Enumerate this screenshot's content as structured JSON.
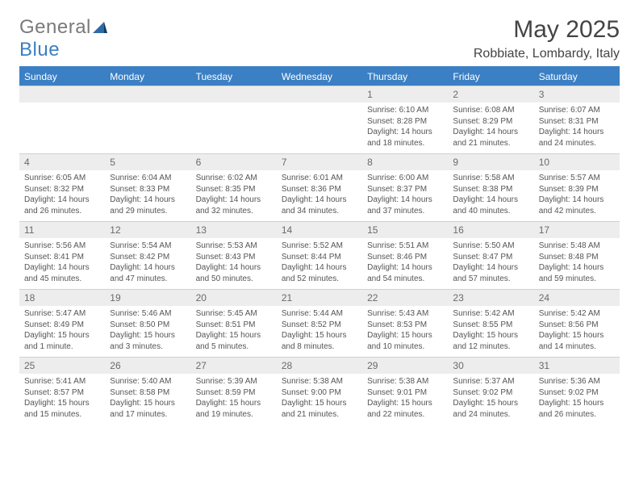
{
  "logo": {
    "general": "General",
    "blue": "Blue"
  },
  "title": "May 2025",
  "location": "Robbiate, Lombardy, Italy",
  "colors": {
    "accent": "#3b7fc4",
    "headerText": "#ffffff",
    "dayNumBg": "#ededed",
    "dayNumColor": "#6a6a6a",
    "bodyText": "#555555",
    "pageBg": "#ffffff"
  },
  "layout": {
    "columns": 7,
    "rows": 5,
    "font_family": "Arial",
    "daynum_fontsize": 12,
    "body_fontsize": 10,
    "title_fontsize": 30
  },
  "weekdays": [
    "Sunday",
    "Monday",
    "Tuesday",
    "Wednesday",
    "Thursday",
    "Friday",
    "Saturday"
  ],
  "weeks": [
    [
      {
        "num": "",
        "sunrise": "",
        "sunset": "",
        "daylight": ""
      },
      {
        "num": "",
        "sunrise": "",
        "sunset": "",
        "daylight": ""
      },
      {
        "num": "",
        "sunrise": "",
        "sunset": "",
        "daylight": ""
      },
      {
        "num": "",
        "sunrise": "",
        "sunset": "",
        "daylight": ""
      },
      {
        "num": "1",
        "sunrise": "Sunrise: 6:10 AM",
        "sunset": "Sunset: 8:28 PM",
        "daylight": "Daylight: 14 hours and 18 minutes."
      },
      {
        "num": "2",
        "sunrise": "Sunrise: 6:08 AM",
        "sunset": "Sunset: 8:29 PM",
        "daylight": "Daylight: 14 hours and 21 minutes."
      },
      {
        "num": "3",
        "sunrise": "Sunrise: 6:07 AM",
        "sunset": "Sunset: 8:31 PM",
        "daylight": "Daylight: 14 hours and 24 minutes."
      }
    ],
    [
      {
        "num": "4",
        "sunrise": "Sunrise: 6:05 AM",
        "sunset": "Sunset: 8:32 PM",
        "daylight": "Daylight: 14 hours and 26 minutes."
      },
      {
        "num": "5",
        "sunrise": "Sunrise: 6:04 AM",
        "sunset": "Sunset: 8:33 PM",
        "daylight": "Daylight: 14 hours and 29 minutes."
      },
      {
        "num": "6",
        "sunrise": "Sunrise: 6:02 AM",
        "sunset": "Sunset: 8:35 PM",
        "daylight": "Daylight: 14 hours and 32 minutes."
      },
      {
        "num": "7",
        "sunrise": "Sunrise: 6:01 AM",
        "sunset": "Sunset: 8:36 PM",
        "daylight": "Daylight: 14 hours and 34 minutes."
      },
      {
        "num": "8",
        "sunrise": "Sunrise: 6:00 AM",
        "sunset": "Sunset: 8:37 PM",
        "daylight": "Daylight: 14 hours and 37 minutes."
      },
      {
        "num": "9",
        "sunrise": "Sunrise: 5:58 AM",
        "sunset": "Sunset: 8:38 PM",
        "daylight": "Daylight: 14 hours and 40 minutes."
      },
      {
        "num": "10",
        "sunrise": "Sunrise: 5:57 AM",
        "sunset": "Sunset: 8:39 PM",
        "daylight": "Daylight: 14 hours and 42 minutes."
      }
    ],
    [
      {
        "num": "11",
        "sunrise": "Sunrise: 5:56 AM",
        "sunset": "Sunset: 8:41 PM",
        "daylight": "Daylight: 14 hours and 45 minutes."
      },
      {
        "num": "12",
        "sunrise": "Sunrise: 5:54 AM",
        "sunset": "Sunset: 8:42 PM",
        "daylight": "Daylight: 14 hours and 47 minutes."
      },
      {
        "num": "13",
        "sunrise": "Sunrise: 5:53 AM",
        "sunset": "Sunset: 8:43 PM",
        "daylight": "Daylight: 14 hours and 50 minutes."
      },
      {
        "num": "14",
        "sunrise": "Sunrise: 5:52 AM",
        "sunset": "Sunset: 8:44 PM",
        "daylight": "Daylight: 14 hours and 52 minutes."
      },
      {
        "num": "15",
        "sunrise": "Sunrise: 5:51 AM",
        "sunset": "Sunset: 8:46 PM",
        "daylight": "Daylight: 14 hours and 54 minutes."
      },
      {
        "num": "16",
        "sunrise": "Sunrise: 5:50 AM",
        "sunset": "Sunset: 8:47 PM",
        "daylight": "Daylight: 14 hours and 57 minutes."
      },
      {
        "num": "17",
        "sunrise": "Sunrise: 5:48 AM",
        "sunset": "Sunset: 8:48 PM",
        "daylight": "Daylight: 14 hours and 59 minutes."
      }
    ],
    [
      {
        "num": "18",
        "sunrise": "Sunrise: 5:47 AM",
        "sunset": "Sunset: 8:49 PM",
        "daylight": "Daylight: 15 hours and 1 minute."
      },
      {
        "num": "19",
        "sunrise": "Sunrise: 5:46 AM",
        "sunset": "Sunset: 8:50 PM",
        "daylight": "Daylight: 15 hours and 3 minutes."
      },
      {
        "num": "20",
        "sunrise": "Sunrise: 5:45 AM",
        "sunset": "Sunset: 8:51 PM",
        "daylight": "Daylight: 15 hours and 5 minutes."
      },
      {
        "num": "21",
        "sunrise": "Sunrise: 5:44 AM",
        "sunset": "Sunset: 8:52 PM",
        "daylight": "Daylight: 15 hours and 8 minutes."
      },
      {
        "num": "22",
        "sunrise": "Sunrise: 5:43 AM",
        "sunset": "Sunset: 8:53 PM",
        "daylight": "Daylight: 15 hours and 10 minutes."
      },
      {
        "num": "23",
        "sunrise": "Sunrise: 5:42 AM",
        "sunset": "Sunset: 8:55 PM",
        "daylight": "Daylight: 15 hours and 12 minutes."
      },
      {
        "num": "24",
        "sunrise": "Sunrise: 5:42 AM",
        "sunset": "Sunset: 8:56 PM",
        "daylight": "Daylight: 15 hours and 14 minutes."
      }
    ],
    [
      {
        "num": "25",
        "sunrise": "Sunrise: 5:41 AM",
        "sunset": "Sunset: 8:57 PM",
        "daylight": "Daylight: 15 hours and 15 minutes."
      },
      {
        "num": "26",
        "sunrise": "Sunrise: 5:40 AM",
        "sunset": "Sunset: 8:58 PM",
        "daylight": "Daylight: 15 hours and 17 minutes."
      },
      {
        "num": "27",
        "sunrise": "Sunrise: 5:39 AM",
        "sunset": "Sunset: 8:59 PM",
        "daylight": "Daylight: 15 hours and 19 minutes."
      },
      {
        "num": "28",
        "sunrise": "Sunrise: 5:38 AM",
        "sunset": "Sunset: 9:00 PM",
        "daylight": "Daylight: 15 hours and 21 minutes."
      },
      {
        "num": "29",
        "sunrise": "Sunrise: 5:38 AM",
        "sunset": "Sunset: 9:01 PM",
        "daylight": "Daylight: 15 hours and 22 minutes."
      },
      {
        "num": "30",
        "sunrise": "Sunrise: 5:37 AM",
        "sunset": "Sunset: 9:02 PM",
        "daylight": "Daylight: 15 hours and 24 minutes."
      },
      {
        "num": "31",
        "sunrise": "Sunrise: 5:36 AM",
        "sunset": "Sunset: 9:02 PM",
        "daylight": "Daylight: 15 hours and 26 minutes."
      }
    ]
  ]
}
